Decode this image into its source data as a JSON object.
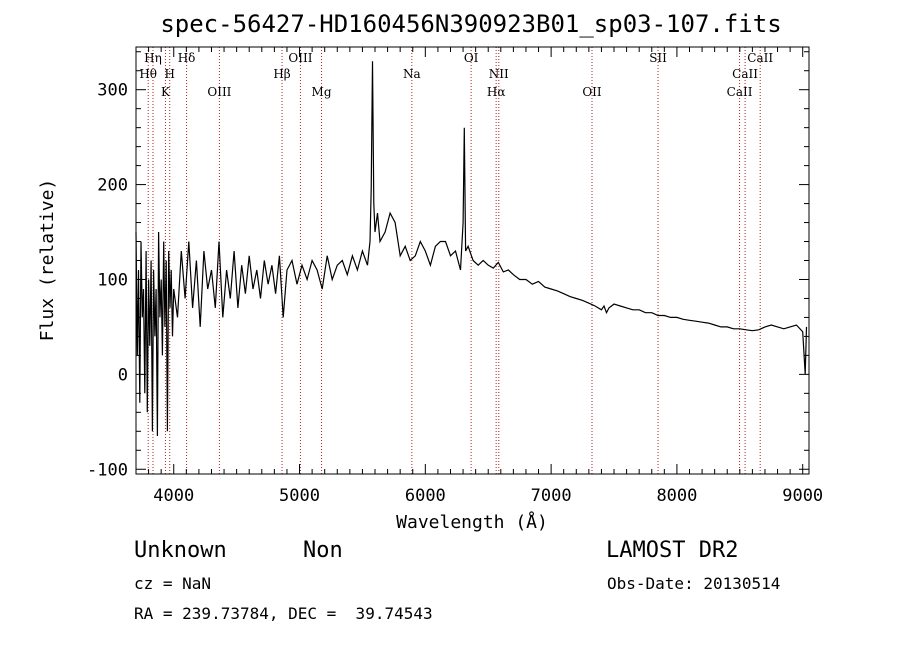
{
  "chart_data": {
    "type": "line",
    "title": "spec-56427-HD160456N390923B01_sp03-107.fits",
    "xlabel": "Wavelength (Å)",
    "ylabel": "Flux (relative)",
    "xlim": [
      3700,
      9050
    ],
    "ylim": [
      -105,
      345
    ],
    "x_ticks": [
      "4000",
      "5000",
      "6000",
      "7000",
      "8000",
      "9000"
    ],
    "y_ticks": [
      "-100",
      "0",
      "100",
      "200",
      "300"
    ],
    "grid": false,
    "series": [
      {
        "x": [
          3700,
          3710,
          3720,
          3730,
          3740,
          3750,
          3760,
          3770,
          3780,
          3790,
          3800,
          3810,
          3820,
          3830,
          3840,
          3850,
          3860,
          3870,
          3880,
          3890,
          3900,
          3910,
          3920,
          3930,
          3940,
          3950,
          3960,
          3970,
          3980,
          3990,
          4000,
          4030,
          4060,
          4090,
          4120,
          4150,
          4180,
          4210,
          4240,
          4270,
          4300,
          4330,
          4360,
          4390,
          4420,
          4450,
          4480,
          4510,
          4540,
          4570,
          4600,
          4630,
          4660,
          4690,
          4720,
          4750,
          4780,
          4810,
          4840,
          4870,
          4900,
          4940,
          4980,
          5020,
          5060,
          5100,
          5140,
          5180,
          5220,
          5260,
          5300,
          5340,
          5380,
          5420,
          5460,
          5500,
          5540,
          5560,
          5570,
          5580,
          5590,
          5600,
          5620,
          5640,
          5680,
          5720,
          5760,
          5800,
          5840,
          5880,
          5920,
          5960,
          6000,
          6040,
          6080,
          6120,
          6160,
          6200,
          6240,
          6280,
          6300,
          6310,
          6320,
          6340,
          6380,
          6420,
          6460,
          6500,
          6540,
          6580,
          6620,
          6660,
          6700,
          6750,
          6800,
          6850,
          6900,
          6950,
          7000,
          7050,
          7100,
          7150,
          7200,
          7250,
          7300,
          7350,
          7400,
          7420,
          7440,
          7460,
          7500,
          7550,
          7600,
          7650,
          7700,
          7750,
          7800,
          7850,
          7900,
          7950,
          8000,
          8050,
          8100,
          8150,
          8200,
          8250,
          8300,
          8350,
          8400,
          8450,
          8500,
          8550,
          8600,
          8650,
          8700,
          8750,
          8800,
          8850,
          8900,
          8950,
          9000,
          9020,
          9030
        ],
        "y": [
          150,
          20,
          110,
          -30,
          140,
          60,
          90,
          -20,
          130,
          -40,
          100,
          30,
          120,
          -60,
          110,
          40,
          90,
          -65,
          150,
          60,
          100,
          20,
          140,
          50,
          120,
          -60,
          130,
          70,
          110,
          40,
          90,
          60,
          130,
          80,
          140,
          70,
          120,
          50,
          130,
          90,
          110,
          70,
          140,
          60,
          110,
          80,
          130,
          70,
          115,
          85,
          125,
          90,
          110,
          80,
          120,
          95,
          115,
          85,
          125,
          60,
          110,
          120,
          95,
          115,
          100,
          120,
          110,
          90,
          125,
          100,
          115,
          120,
          105,
          125,
          110,
          130,
          115,
          140,
          195,
          330,
          180,
          150,
          170,
          140,
          150,
          170,
          160,
          125,
          135,
          120,
          125,
          140,
          130,
          115,
          135,
          140,
          140,
          125,
          130,
          110,
          160,
          260,
          130,
          135,
          120,
          115,
          120,
          115,
          112,
          118,
          108,
          110,
          105,
          100,
          100,
          95,
          98,
          92,
          90,
          88,
          85,
          82,
          80,
          78,
          75,
          72,
          68,
          72,
          65,
          70,
          74,
          72,
          70,
          68,
          68,
          65,
          65,
          62,
          62,
          60,
          60,
          58,
          57,
          56,
          55,
          54,
          52,
          50,
          50,
          48,
          48,
          47,
          46,
          47,
          50,
          52,
          50,
          48,
          50,
          52,
          45,
          0,
          50
        ]
      }
    ],
    "emission_lines": [
      {
        "label": "Hη",
        "wl": 3835,
        "row": 1
      },
      {
        "label": "Hθ",
        "wl": 3797,
        "row": 2
      },
      {
        "label": "K",
        "wl": 3934,
        "row": 3
      },
      {
        "label": "H",
        "wl": 3968,
        "row": 2
      },
      {
        "label": "Hδ",
        "wl": 4102,
        "row": 1
      },
      {
        "label": "OIII",
        "wl": 4363,
        "row": 3
      },
      {
        "label": "Hβ",
        "wl": 4861,
        "row": 2
      },
      {
        "label": "OIII",
        "wl": 5007,
        "row": 1
      },
      {
        "label": "Mg",
        "wl": 5175,
        "row": 3
      },
      {
        "label": "Na",
        "wl": 5893,
        "row": 2
      },
      {
        "label": "OI",
        "wl": 6364,
        "row": 1
      },
      {
        "label": "NII",
        "wl": 6584,
        "row": 2
      },
      {
        "label": "Hα",
        "wl": 6563,
        "row": 3
      },
      {
        "label": "OII",
        "wl": 7325,
        "row": 3
      },
      {
        "label": "SII",
        "wl": 7850,
        "row": 1
      },
      {
        "label": "CaII",
        "wl": 8542,
        "row": 2
      },
      {
        "label": "CaII",
        "wl": 8498,
        "row": 3
      },
      {
        "label": "CaII",
        "wl": 8662,
        "row": 1
      }
    ]
  },
  "info": {
    "object_type": "Unknown",
    "object_subtype": "Non",
    "survey": "LAMOST DR2",
    "cz": "cz = NaN",
    "obs_date": "Obs-Date: 20130514",
    "coords": "RA = 239.73784, DEC =  39.74543"
  }
}
